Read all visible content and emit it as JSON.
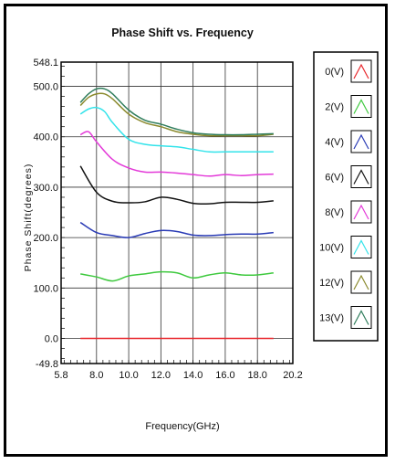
{
  "chart_data": {
    "type": "line",
    "title": "Phase Shift vs. Frequency",
    "xlabel": "Frequency(GHz)",
    "ylabel": "Phase Shift(degrees)",
    "xlim": [
      5.8,
      20.2
    ],
    "ylim": [
      -49.8,
      548.1
    ],
    "x_ticks": [
      "5.8",
      "8.0",
      "10.0",
      "12.0",
      "14.0",
      "16.0",
      "18.0",
      "20.2"
    ],
    "x_tick_values": [
      5.8,
      8.0,
      10.0,
      12.0,
      14.0,
      16.0,
      18.0,
      20.2
    ],
    "y_ticks": [
      "-49.8",
      "0.0",
      "100.0",
      "200.0",
      "300.0",
      "400.0",
      "500.0",
      "548.1"
    ],
    "y_tick_values": [
      -49.8,
      0,
      100,
      200,
      300,
      400,
      500,
      548.1
    ],
    "grid": true,
    "legend_position": "right",
    "series": [
      {
        "name": "0(V)",
        "color": "#e8262b",
        "x": [
          7,
          8,
          9,
          10,
          11,
          12,
          13,
          14,
          15,
          16,
          17,
          18,
          19
        ],
        "y": [
          0,
          0,
          0,
          0,
          0,
          0,
          0,
          0,
          0,
          0,
          0,
          0,
          0
        ]
      },
      {
        "name": "2(V)",
        "color": "#3ec93e",
        "x": [
          7,
          8,
          9,
          10,
          11,
          12,
          13,
          14,
          15,
          16,
          17,
          18,
          19
        ],
        "y": [
          128,
          122,
          114,
          124,
          128,
          132,
          130,
          120,
          126,
          130,
          126,
          126,
          130
        ]
      },
      {
        "name": "4(V)",
        "color": "#2a3bb5",
        "x": [
          7,
          8,
          9,
          10,
          11,
          12,
          13,
          14,
          15,
          16,
          17,
          18,
          19
        ],
        "y": [
          230,
          210,
          204,
          200,
          208,
          214,
          212,
          205,
          204,
          206,
          207,
          207,
          210
        ]
      },
      {
        "name": "6(V)",
        "color": "#111111",
        "x": [
          7,
          8,
          9,
          10,
          11,
          12,
          13,
          14,
          15,
          16,
          17,
          18,
          19
        ],
        "y": [
          342,
          290,
          272,
          269,
          271,
          280,
          276,
          268,
          267,
          270,
          270,
          270,
          273
        ]
      },
      {
        "name": "8(V)",
        "color": "#e339d8",
        "x": [
          7,
          7.5,
          8,
          9,
          10,
          11,
          12,
          13,
          14,
          15,
          16,
          17,
          18,
          19
        ],
        "y": [
          404,
          410,
          390,
          355,
          338,
          330,
          330,
          328,
          325,
          322,
          325,
          323,
          325,
          326
        ]
      },
      {
        "name": "10(V)",
        "color": "#33e3ea",
        "x": [
          7,
          7.5,
          8,
          8.5,
          9,
          10,
          11,
          12,
          13,
          14,
          15,
          16,
          17,
          18,
          19
        ],
        "y": [
          445,
          455,
          458,
          450,
          428,
          395,
          385,
          382,
          380,
          375,
          370,
          370,
          370,
          370,
          370
        ]
      },
      {
        "name": "12(V)",
        "color": "#8b8a2e",
        "x": [
          7,
          7.5,
          8,
          8.5,
          9,
          10,
          11,
          12,
          13,
          14,
          15,
          16,
          17,
          18,
          19
        ],
        "y": [
          462,
          478,
          485,
          485,
          475,
          445,
          428,
          420,
          410,
          405,
          402,
          402,
          402,
          402,
          405
        ]
      },
      {
        "name": "13(V)",
        "color": "#2f7d5c",
        "x": [
          7,
          7.5,
          8,
          8.5,
          9,
          10,
          11,
          12,
          13,
          14,
          15,
          16,
          17,
          18,
          19
        ],
        "y": [
          468,
          485,
          495,
          495,
          485,
          453,
          433,
          425,
          415,
          408,
          405,
          404,
          404,
          405,
          406
        ]
      }
    ]
  }
}
